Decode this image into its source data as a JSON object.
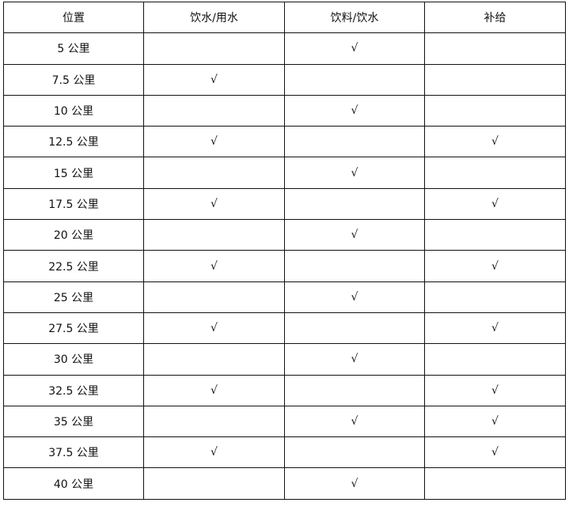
{
  "headers": [
    "位置",
    "饮水/用水",
    "饮料/饮水",
    "补给"
  ],
  "check_mark": "√",
  "rows": [
    {
      "location": "5 公里",
      "water": "",
      "drink": "√",
      "supply": ""
    },
    {
      "location": "7.5 公里",
      "water": "√",
      "drink": "",
      "supply": ""
    },
    {
      "location": "10 公里",
      "water": "",
      "drink": "√",
      "supply": ""
    },
    {
      "location": "12.5 公里",
      "water": "√",
      "drink": "",
      "supply": "√"
    },
    {
      "location": "15 公里",
      "water": "",
      "drink": "√",
      "supply": ""
    },
    {
      "location": "17.5 公里",
      "water": "√",
      "drink": "",
      "supply": "√"
    },
    {
      "location": "20 公里",
      "water": "",
      "drink": "√",
      "supply": ""
    },
    {
      "location": "22.5 公里",
      "water": "√",
      "drink": "",
      "supply": "√"
    },
    {
      "location": "25 公里",
      "water": "",
      "drink": "√",
      "supply": ""
    },
    {
      "location": "27.5 公里",
      "water": "√",
      "drink": "",
      "supply": "√"
    },
    {
      "location": "30 公里",
      "water": "",
      "drink": "√",
      "supply": ""
    },
    {
      "location": "32.5 公里",
      "water": "√",
      "drink": "",
      "supply": "√"
    },
    {
      "location": "35 公里",
      "water": "",
      "drink": "√",
      "supply": "√"
    },
    {
      "location": "37.5 公里",
      "water": "√",
      "drink": "",
      "supply": "√"
    },
    {
      "location": "40 公里",
      "water": "",
      "drink": "√",
      "supply": ""
    }
  ]
}
